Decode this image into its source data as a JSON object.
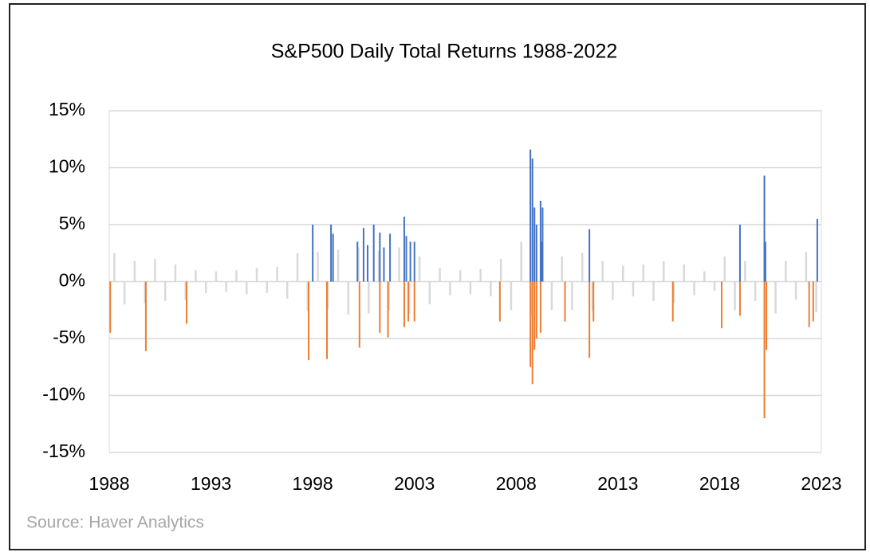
{
  "chart_data": {
    "type": "bar",
    "title": "S&P500 Daily Total Returns 1988-2022",
    "source": "Source: Haver Analytics",
    "xlim": [
      1988,
      2023
    ],
    "xticks": [
      1988,
      1993,
      1998,
      2003,
      2008,
      2013,
      2018,
      2023
    ],
    "ylim": [
      -15,
      15
    ],
    "yticks": [
      {
        "value": -15,
        "label": "-15%"
      },
      {
        "value": -10,
        "label": "-10%"
      },
      {
        "value": -5,
        "label": "-5%"
      },
      {
        "value": 0,
        "label": "0%"
      },
      {
        "value": 5,
        "label": "5%"
      },
      {
        "value": 10,
        "label": "10%"
      },
      {
        "value": 15,
        "label": "15%"
      }
    ],
    "grid": true,
    "series": [
      {
        "color": "#d9d9d9",
        "x": [
          1988.25,
          1988.75,
          1989.25,
          1989.75,
          1990.25,
          1990.75,
          1991.25,
          1991.75,
          1992.25,
          1992.75,
          1993.25,
          1993.75,
          1994.25,
          1994.75,
          1995.25,
          1995.75,
          1996.25,
          1996.75,
          1997.25,
          1997.75,
          1998.25,
          1998.75,
          1999.25,
          1999.75,
          2000.25,
          2000.75,
          2001.25,
          2001.75,
          2002.25,
          2002.75,
          2003.25,
          2003.75,
          2004.25,
          2004.75,
          2005.25,
          2005.75,
          2006.25,
          2006.75,
          2007.25,
          2007.75,
          2008.25,
          2008.75,
          2009.25,
          2009.75,
          2010.25,
          2010.75,
          2011.25,
          2011.75,
          2012.25,
          2012.75,
          2013.25,
          2013.75,
          2014.25,
          2014.75,
          2015.25,
          2015.75,
          2016.25,
          2016.75,
          2017.25,
          2017.75,
          2018.25,
          2018.75,
          2019.25,
          2019.75,
          2020.25,
          2020.75,
          2021.25,
          2021.75,
          2022.25,
          2022.75
        ],
        "values": [
          2.5,
          -2,
          1.8,
          -1.9,
          2,
          -1.7,
          1.5,
          -1.6,
          1,
          -1,
          0.9,
          -0.9,
          1,
          -1.1,
          1.2,
          -1,
          1.3,
          -1.5,
          2.5,
          -2.6,
          2.6,
          -2.4,
          2.8,
          -2.9,
          3,
          -2.8,
          2.7,
          -2.5,
          3,
          -2.8,
          2.2,
          -2,
          1.2,
          -1.2,
          1,
          -1.1,
          1.1,
          -1.3,
          2,
          -2.5,
          3.5,
          -3,
          3,
          -2.5,
          2.2,
          -2.5,
          2.5,
          -2.6,
          1.8,
          -1.6,
          1.4,
          -1.3,
          1.5,
          -1.7,
          1.8,
          -1.9,
          1.5,
          -1.2,
          0.9,
          -0.8,
          2.2,
          -2.5,
          1.8,
          -1.7,
          3,
          -2.8,
          1.8,
          -1.6,
          2.6,
          -2.7
        ]
      },
      {
        "color": "#4472c4",
        "x": [
          1998.0,
          1998.9,
          1999.0,
          2000.2,
          2000.5,
          2000.7,
          2001.0,
          2001.3,
          2001.5,
          2001.8,
          2002.5,
          2002.6,
          2002.8,
          2003.0,
          2008.7,
          2008.8,
          2008.9,
          2009.0,
          2009.2,
          2009.25,
          2009.3,
          2011.6,
          2019.0,
          2020.2,
          2020.25,
          2022.8
        ],
        "values": [
          5.0,
          5.0,
          4.2,
          3.5,
          4.7,
          3.2,
          5.0,
          4.3,
          3.0,
          4.2,
          5.7,
          4.0,
          3.5,
          3.5,
          11.6,
          10.8,
          6.5,
          5.0,
          7.1,
          3.5,
          6.5,
          4.6,
          5.0,
          9.3,
          3.5,
          5.5
        ]
      },
      {
        "color": "#ed7d31",
        "x": [
          1988.05,
          1989.8,
          1991.8,
          1997.8,
          1998.7,
          2000.3,
          2001.3,
          2001.7,
          2002.5,
          2002.7,
          2003.0,
          2007.2,
          2008.7,
          2008.8,
          2008.9,
          2009.0,
          2009.2,
          2010.4,
          2011.6,
          2011.8,
          2015.7,
          2018.1,
          2019.0,
          2020.2,
          2020.3,
          2022.4,
          2022.6
        ],
        "values": [
          -4.5,
          -6.1,
          -3.7,
          -6.9,
          -6.8,
          -5.8,
          -4.5,
          -4.9,
          -4.0,
          -3.5,
          -3.5,
          -3.5,
          -7.5,
          -9.0,
          -6.0,
          -5.0,
          -4.5,
          -3.5,
          -6.7,
          -3.5,
          -3.5,
          -4.1,
          -3.0,
          -12.0,
          -6.0,
          -4.0,
          -3.5
        ]
      }
    ]
  }
}
